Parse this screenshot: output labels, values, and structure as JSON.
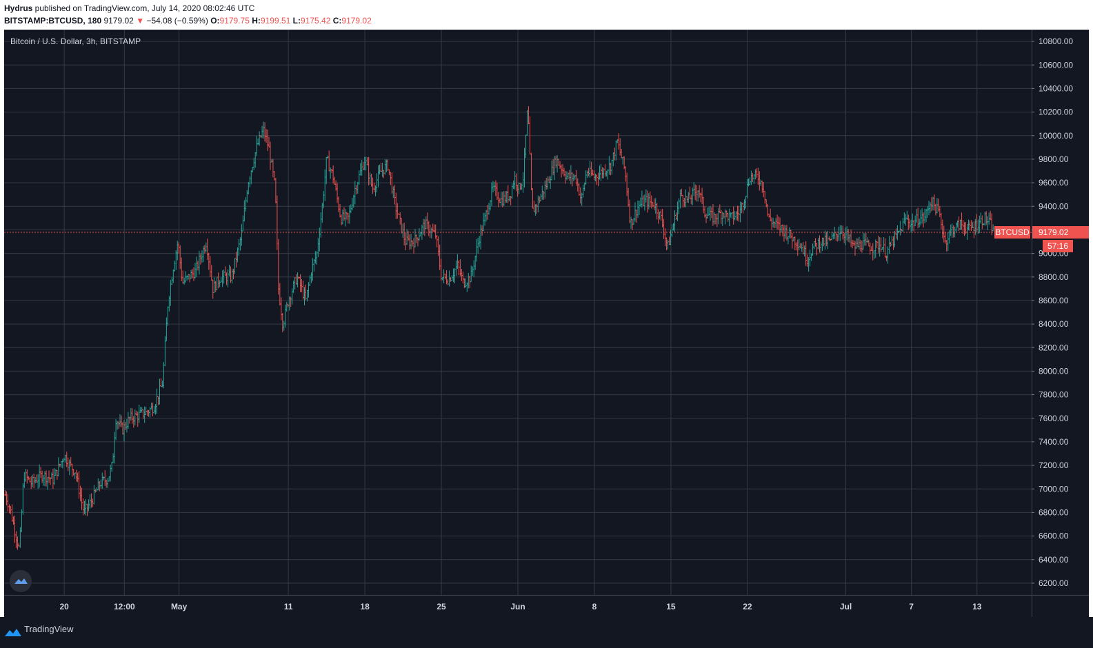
{
  "header": {
    "publisher": "Hydrus",
    "published_text": " published on TradingView.com, July 14, 2020 08:02:46 UTC",
    "symbol": "BITSTAMP:BTCUSD, 180",
    "last": "9179.02",
    "change_arrow": "▼",
    "change": "−54.08 (−0.59%)",
    "o_label": "O:",
    "o_value": "9179.75",
    "h_label": "H:",
    "h_value": "9199.51",
    "l_label": "L:",
    "l_value": "9175.42",
    "c_label": "C:",
    "c_value": "9179.02"
  },
  "chart_title": "Bitcoin / U.S. Dollar, 3h, BITSTAMP",
  "footer": {
    "brand": "TradingView",
    "logo_icon": "tradingview-logo-icon"
  },
  "colors": {
    "background": "#131722",
    "grid": "#363a45",
    "up": "#26a69a",
    "down": "#ef5350",
    "text": "#d1d4dc"
  },
  "chart_data": {
    "type": "candlestick",
    "title": "Bitcoin / U.S. Dollar, 3h, BITSTAMP",
    "symbol": "BTCUSD",
    "exchange": "BITSTAMP",
    "interval": "3h",
    "ylim": [
      6100,
      10900
    ],
    "y_ticks": [
      10800,
      10600,
      10400,
      10200,
      10000,
      9800,
      9600,
      9400,
      9200,
      9000,
      8800,
      8600,
      8400,
      8200,
      8000,
      7800,
      7600,
      7400,
      7200,
      7000,
      6800,
      6600,
      6400,
      6200
    ],
    "y_tick_labels": [
      "10800.00",
      "10600.00",
      "10400.00",
      "10200.00",
      "10000.00",
      "9800.00",
      "9600.00",
      "9400.00",
      "9200.00",
      "9000.00",
      "8800.00",
      "8600.00",
      "8400.00",
      "8200.00",
      "8000.00",
      "7800.00",
      "7600.00",
      "7400.00",
      "7200.00",
      "7000.00",
      "6800.00",
      "6600.00",
      "6400.00",
      "6200.00"
    ],
    "x_tick_labels": [
      "20",
      "12:00",
      "May",
      "11",
      "18",
      "25",
      "Jun",
      "8",
      "15",
      "22",
      "Jul",
      "7",
      "13"
    ],
    "x_tick_day_index": [
      4,
      9.5,
      14.5,
      24.5,
      31.5,
      38.5,
      45.5,
      52.5,
      59.5,
      66.5,
      75.5,
      81.5,
      87.5
    ],
    "x_range_days": [
      -1.5,
      92.5
    ],
    "last_price": 9179.02,
    "last_price_label": "BTCUSD",
    "last_price_value_label": "9179.02",
    "countdown": "57:16",
    "price_path": [
      [
        -1.4,
        6950
      ],
      [
        -1.0,
        6850
      ],
      [
        -0.5,
        6640
      ],
      [
        -0.1,
        6480
      ],
      [
        0.3,
        7120
      ],
      [
        1.0,
        7050
      ],
      [
        2.0,
        7120
      ],
      [
        3.0,
        7080
      ],
      [
        4.0,
        7290
      ],
      [
        4.5,
        7200
      ],
      [
        5.0,
        7150
      ],
      [
        5.8,
        6800
      ],
      [
        6.5,
        6900
      ],
      [
        7.3,
        7050
      ],
      [
        8.0,
        7090
      ],
      [
        8.4,
        7200
      ],
      [
        8.7,
        7600
      ],
      [
        9.3,
        7500
      ],
      [
        10.0,
        7600
      ],
      [
        11.5,
        7650
      ],
      [
        12.2,
        7700
      ],
      [
        13.0,
        7900
      ],
      [
        13.5,
        8600
      ],
      [
        14.0,
        8900
      ],
      [
        14.4,
        9100
      ],
      [
        14.8,
        8750
      ],
      [
        16.0,
        8850
      ],
      [
        17.0,
        9100
      ],
      [
        17.6,
        8700
      ],
      [
        18.3,
        8800
      ],
      [
        19.3,
        8800
      ],
      [
        20.2,
        9150
      ],
      [
        20.8,
        9600
      ],
      [
        21.6,
        9900
      ],
      [
        22.2,
        10050
      ],
      [
        22.7,
        9900
      ],
      [
        23.3,
        9550
      ],
      [
        23.6,
        8700
      ],
      [
        24.0,
        8400
      ],
      [
        24.5,
        8600
      ],
      [
        25.3,
        8800
      ],
      [
        26.1,
        8600
      ],
      [
        26.6,
        8850
      ],
      [
        27.1,
        9000
      ],
      [
        27.6,
        9400
      ],
      [
        28.0,
        9800
      ],
      [
        28.6,
        9650
      ],
      [
        29.3,
        9300
      ],
      [
        30.0,
        9300
      ],
      [
        30.6,
        9550
      ],
      [
        31.5,
        9800
      ],
      [
        32.2,
        9550
      ],
      [
        33.0,
        9700
      ],
      [
        33.6,
        9750
      ],
      [
        34.3,
        9400
      ],
      [
        35.2,
        9100
      ],
      [
        36.0,
        9100
      ],
      [
        37.0,
        9250
      ],
      [
        38.0,
        9150
      ],
      [
        38.5,
        8800
      ],
      [
        39.2,
        8780
      ],
      [
        40.0,
        8900
      ],
      [
        40.5,
        8750
      ],
      [
        41.2,
        8800
      ],
      [
        42.0,
        9150
      ],
      [
        42.5,
        9300
      ],
      [
        43.2,
        9550
      ],
      [
        44.0,
        9450
      ],
      [
        44.8,
        9500
      ],
      [
        45.2,
        9650
      ],
      [
        45.6,
        9550
      ],
      [
        46.0,
        9650
      ],
      [
        46.4,
        10250
      ],
      [
        46.8,
        9350
      ],
      [
        47.4,
        9450
      ],
      [
        48.2,
        9600
      ],
      [
        49.0,
        9800
      ],
      [
        50.0,
        9650
      ],
      [
        50.8,
        9650
      ],
      [
        51.3,
        9450
      ],
      [
        51.8,
        9700
      ],
      [
        52.5,
        9650
      ],
      [
        53.3,
        9700
      ],
      [
        54.0,
        9750
      ],
      [
        54.6,
        9950
      ],
      [
        55.3,
        9700
      ],
      [
        55.8,
        9250
      ],
      [
        56.5,
        9400
      ],
      [
        57.2,
        9450
      ],
      [
        58.0,
        9420
      ],
      [
        58.6,
        9300
      ],
      [
        59.2,
        9050
      ],
      [
        59.6,
        9200
      ],
      [
        60.4,
        9500
      ],
      [
        61.0,
        9450
      ],
      [
        62.0,
        9550
      ],
      [
        62.6,
        9350
      ],
      [
        63.4,
        9300
      ],
      [
        64.2,
        9350
      ],
      [
        65.0,
        9300
      ],
      [
        65.8,
        9350
      ],
      [
        66.3,
        9500
      ],
      [
        66.7,
        9650
      ],
      [
        67.5,
        9650
      ],
      [
        68.0,
        9550
      ],
      [
        68.4,
        9300
      ],
      [
        69.0,
        9250
      ],
      [
        69.8,
        9200
      ],
      [
        70.4,
        9150
      ],
      [
        71.0,
        9100
      ],
      [
        71.5,
        9050
      ],
      [
        72.0,
        8950
      ],
      [
        72.5,
        9050
      ],
      [
        73.2,
        9100
      ],
      [
        74.0,
        9100
      ],
      [
        75.0,
        9200
      ],
      [
        75.6,
        9150
      ],
      [
        76.2,
        9050
      ],
      [
        77.0,
        9080
      ],
      [
        78.0,
        9050
      ],
      [
        78.7,
        9080
      ],
      [
        79.2,
        9000
      ],
      [
        79.8,
        9100
      ],
      [
        80.5,
        9200
      ],
      [
        81.0,
        9300
      ],
      [
        81.5,
        9250
      ],
      [
        82.2,
        9300
      ],
      [
        82.7,
        9300
      ],
      [
        83.3,
        9450
      ],
      [
        84.0,
        9350
      ],
      [
        84.6,
        9100
      ],
      [
        85.2,
        9200
      ],
      [
        86.0,
        9250
      ],
      [
        86.8,
        9200
      ],
      [
        87.5,
        9250
      ],
      [
        88.2,
        9300
      ],
      [
        88.8,
        9240
      ],
      [
        89.0,
        9179
      ]
    ]
  }
}
